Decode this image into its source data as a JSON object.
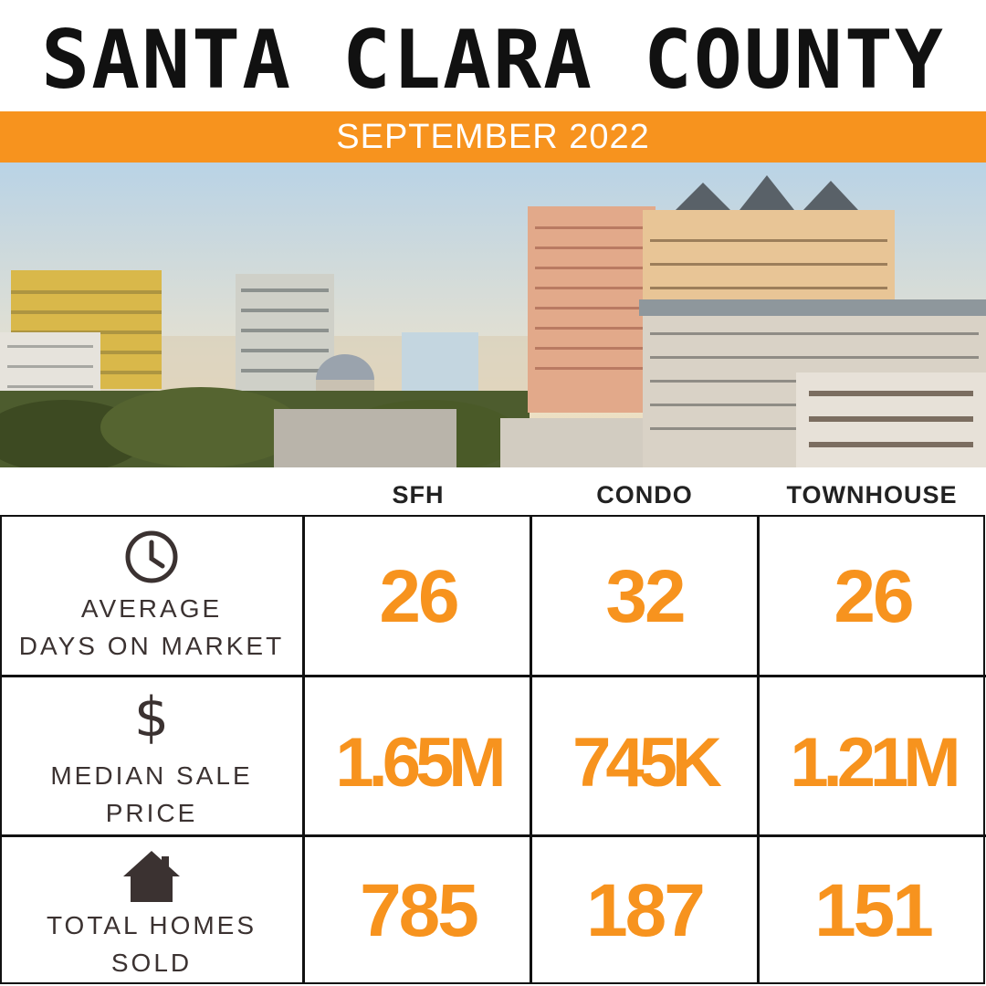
{
  "header": {
    "title": "SANTA CLARA COUNTY",
    "subtitle": "SEPTEMBER 2022"
  },
  "columns": [
    "SFH",
    "CONDO",
    "TOWNHOUSE"
  ],
  "rows": [
    {
      "icon": "clock-icon",
      "label_line1": "AVERAGE",
      "label_line2": "DAYS ON MARKET",
      "values": [
        "26",
        "32",
        "26"
      ]
    },
    {
      "icon": "dollar-icon",
      "label_line1": "MEDIAN SALE",
      "label_line2": "PRICE",
      "values": [
        "1.65M",
        "745K",
        "1.21M"
      ]
    },
    {
      "icon": "house-icon",
      "label_line1": "TOTAL HOMES",
      "label_line2": "SOLD",
      "values": [
        "785",
        "187",
        "151"
      ]
    }
  ],
  "colors": {
    "accent": "#f7931e",
    "text": "#111111",
    "label": "#3b3231"
  }
}
